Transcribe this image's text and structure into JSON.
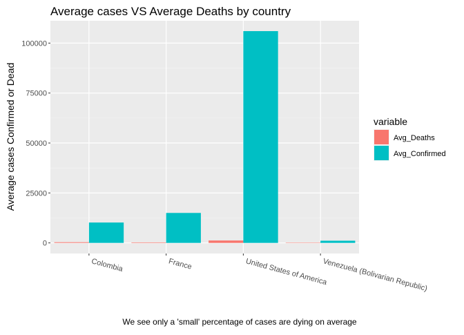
{
  "chart_data": {
    "type": "bar",
    "title": "Average cases VS Average Deaths by country",
    "xlabel": "",
    "ylabel": "Average cases Confirmed or Dead",
    "caption": "We see only a 'small' percentage of cases are dying on average",
    "categories": [
      "Colombia",
      "France",
      "United States of America",
      "Venezuela (Bolivarian Republic)"
    ],
    "series": [
      {
        "name": "Avg_Deaths",
        "color": "#F8766D",
        "values": [
          350,
          250,
          1200,
          100
        ]
      },
      {
        "name": "Avg_Confirmed",
        "color": "#00BFC4",
        "values": [
          10200,
          15000,
          106000,
          1100
        ]
      }
    ],
    "ylim": [
      -5300,
      111200
    ],
    "yticks": [
      0,
      25000,
      50000,
      75000,
      100000
    ],
    "ytick_labels": [
      "0",
      "25000",
      "50000",
      "75000",
      "100000"
    ],
    "grid": true,
    "legend": {
      "title": "variable",
      "position": "right"
    }
  }
}
